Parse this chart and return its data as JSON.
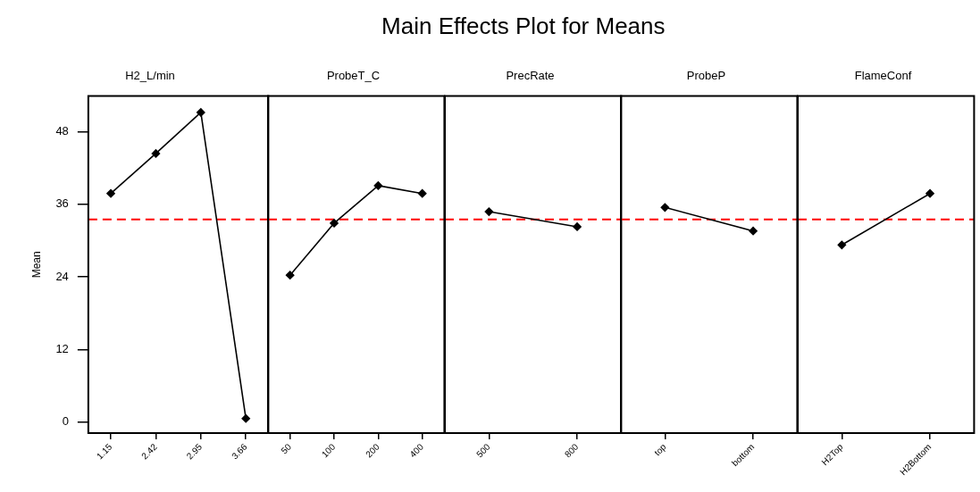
{
  "chart_data": [
    {
      "type": "line",
      "subtitle": "H2_L/min",
      "ylabel": "Mean",
      "categories": [
        "1.15",
        "2.42",
        "2.95",
        "3.66"
      ],
      "values": [
        37.8,
        44.4,
        51.2,
        0.6
      ],
      "color": "#000000",
      "marker": "diamond",
      "ylim": [
        -1.8,
        53.9
      ],
      "yticks": [
        0,
        12,
        24,
        36,
        48
      ],
      "ref_lines": [
        {
          "axis": "y",
          "value": 33.5,
          "color": "#ff0000",
          "line_style": "dashed"
        }
      ],
      "grid": false,
      "legend": false
    },
    {
      "type": "line",
      "subtitle": "ProbeT_C",
      "categories": [
        "50",
        "100",
        "200",
        "400"
      ],
      "values": [
        24.3,
        32.9,
        39.1,
        37.8
      ],
      "color": "#000000",
      "marker": "diamond",
      "ylim": [
        -1.8,
        53.9
      ],
      "tick_labels": "x",
      "ref_lines": [
        {
          "axis": "y",
          "value": 33.5,
          "color": "#ff0000",
          "line_style": "dashed"
        }
      ],
      "grid": false,
      "legend": false
    },
    {
      "type": "line",
      "title": "Main Effects Plot for Means",
      "subtitle": "PrecRate",
      "categories": [
        "500",
        "800"
      ],
      "values": [
        34.8,
        32.3
      ],
      "color": "#000000",
      "marker": "diamond",
      "ylim": [
        -1.8,
        53.9
      ],
      "tick_labels": "x",
      "ref_lines": [
        {
          "axis": "y",
          "value": 33.5,
          "color": "#ff0000",
          "line_style": "dashed"
        }
      ],
      "grid": false,
      "legend": false
    },
    {
      "type": "line",
      "subtitle": "ProbeP",
      "categories": [
        "top",
        "bottom"
      ],
      "values": [
        35.5,
        31.6
      ],
      "color": "#000000",
      "marker": "diamond",
      "ylim": [
        -1.8,
        53.9
      ],
      "tick_labels": "x",
      "ref_lines": [
        {
          "axis": "y",
          "value": 33.5,
          "color": "#ff0000",
          "line_style": "dashed"
        }
      ],
      "grid": false,
      "legend": false
    },
    {
      "type": "line",
      "subtitle": "FlameConf",
      "categories": [
        "H2Top",
        "H2Bottom"
      ],
      "values": [
        29.3,
        37.8
      ],
      "color": "#000000",
      "marker": "diamond",
      "ylim": [
        -1.8,
        53.9
      ],
      "tick_labels": "x",
      "ref_lines": [
        {
          "axis": "y",
          "value": 33.5,
          "color": "#ff0000",
          "line_style": "dashed"
        }
      ],
      "grid": false,
      "legend": false
    }
  ]
}
